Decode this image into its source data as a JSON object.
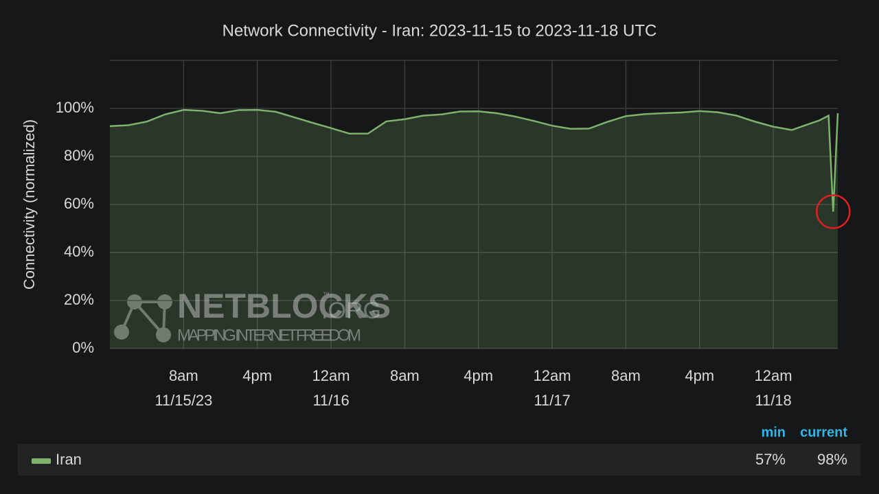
{
  "chart_data": {
    "type": "area",
    "title": "Network Connectivity - Iran: 2023-11-15 to 2023-11-18 UTC",
    "y_label": "Connectivity (normalized)",
    "watermark": {
      "brand": "NETBLOCKS",
      "suffix": ".ORG",
      "tm": "™",
      "tagline": "MAPPING INTERNET FREEDOM"
    },
    "xlim": [
      "2023-11-15T00:00",
      "2023-11-18T07:00"
    ],
    "xticks": [
      {
        "value": "2023-11-15T08:00",
        "label": "8am",
        "date": "11/15/23"
      },
      {
        "value": "2023-11-15T16:00",
        "label": "4pm"
      },
      {
        "value": "2023-11-16T00:00",
        "label": "12am",
        "date": "11/16"
      },
      {
        "value": "2023-11-16T08:00",
        "label": "8am"
      },
      {
        "value": "2023-11-16T16:00",
        "label": "4pm"
      },
      {
        "value": "2023-11-17T00:00",
        "label": "12am",
        "date": "11/17"
      },
      {
        "value": "2023-11-17T08:00",
        "label": "8am"
      },
      {
        "value": "2023-11-17T16:00",
        "label": "4pm"
      },
      {
        "value": "2023-11-18T00:00",
        "label": "12am",
        "date": "11/18"
      }
    ],
    "ylim": [
      0,
      120
    ],
    "yticks": [
      {
        "value": 0,
        "label": "0%"
      },
      {
        "value": 20,
        "label": "20%"
      },
      {
        "value": 40,
        "label": "40%"
      },
      {
        "value": 60,
        "label": "60%"
      },
      {
        "value": 80,
        "label": "80%"
      },
      {
        "value": 100,
        "label": "100%"
      }
    ],
    "grid": true,
    "x": [
      "2023-11-15T00:00",
      "2023-11-15T02:00",
      "2023-11-15T04:00",
      "2023-11-15T06:00",
      "2023-11-15T08:00",
      "2023-11-15T10:00",
      "2023-11-15T12:00",
      "2023-11-15T14:00",
      "2023-11-15T16:00",
      "2023-11-15T18:00",
      "2023-11-15T20:00",
      "2023-11-15T22:00",
      "2023-11-16T00:00",
      "2023-11-16T02:00",
      "2023-11-16T04:00",
      "2023-11-16T06:00",
      "2023-11-16T08:00",
      "2023-11-16T10:00",
      "2023-11-16T12:00",
      "2023-11-16T14:00",
      "2023-11-16T16:00",
      "2023-11-16T18:00",
      "2023-11-16T20:00",
      "2023-11-16T22:00",
      "2023-11-17T00:00",
      "2023-11-17T02:00",
      "2023-11-17T04:00",
      "2023-11-17T06:00",
      "2023-11-17T08:00",
      "2023-11-17T10:00",
      "2023-11-17T12:00",
      "2023-11-17T14:00",
      "2023-11-17T16:00",
      "2023-11-17T18:00",
      "2023-11-17T20:00",
      "2023-11-17T22:00",
      "2023-11-18T00:00",
      "2023-11-18T02:00",
      "2023-11-18T04:00",
      "2023-11-18T05:00",
      "2023-11-18T06:00",
      "2023-11-18T06:30",
      "2023-11-18T07:00"
    ],
    "series": [
      {
        "name": "Iran",
        "color": "#7eb26d",
        "values": [
          92.6,
          93,
          94.5,
          97.5,
          99.4,
          99,
          98,
          99.3,
          99.4,
          98.6,
          96.3,
          94,
          91.8,
          89.5,
          89.5,
          94.6,
          95.5,
          97,
          97.5,
          98.7,
          98.8,
          98,
          96.6,
          94.8,
          92.8,
          91.5,
          91.6,
          94.4,
          96.8,
          97.6,
          98,
          98.3,
          98.9,
          98.4,
          97,
          94.5,
          92.4,
          91,
          93.7,
          95,
          97,
          57,
          98
        ]
      }
    ],
    "stats": [
      {
        "name": "min",
        "value": 57,
        "label": "57%"
      },
      {
        "name": "current",
        "value": 98,
        "label": "98%"
      }
    ]
  }
}
